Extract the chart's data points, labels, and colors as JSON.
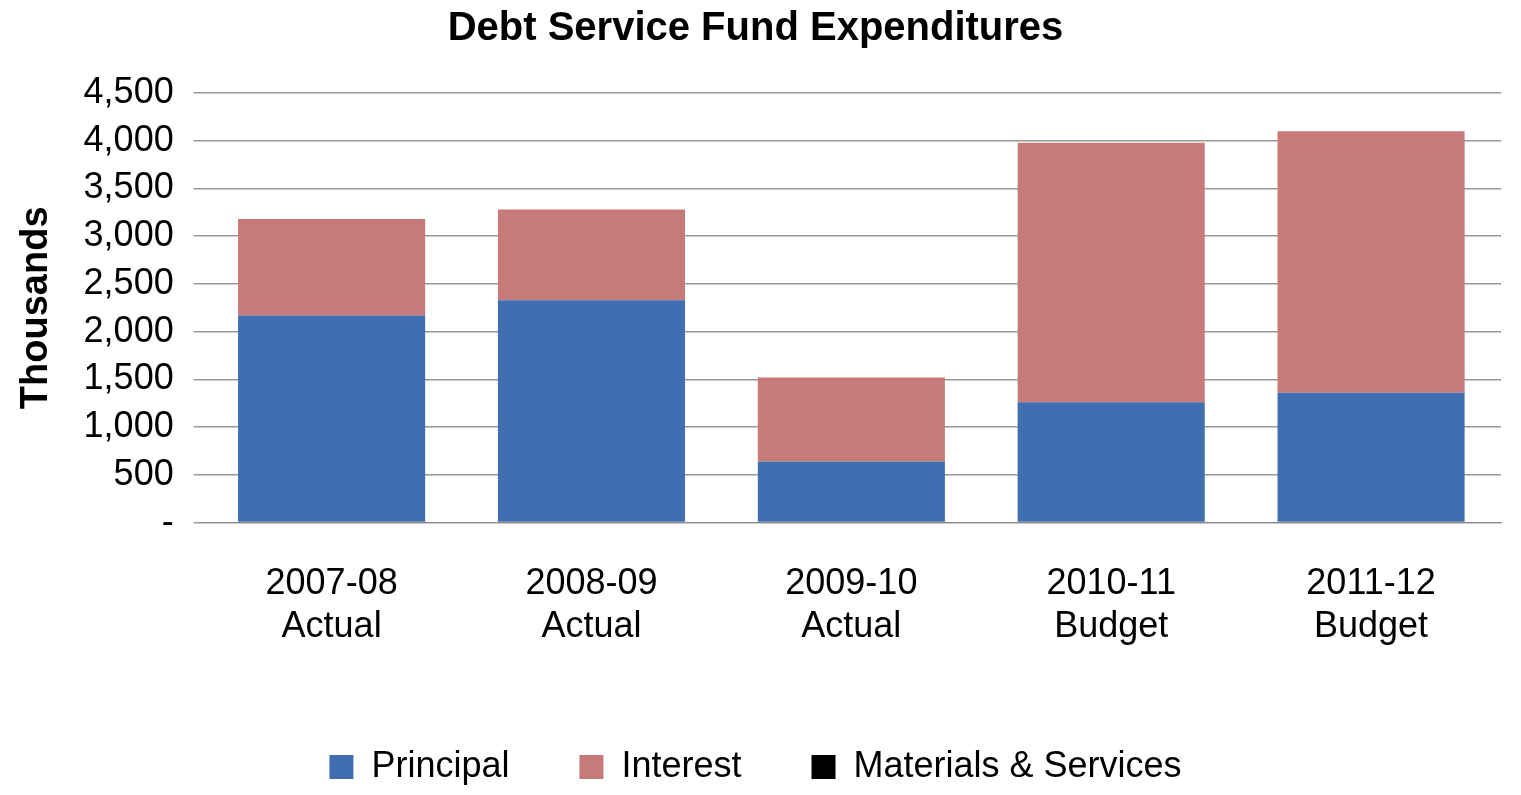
{
  "chart_data": {
    "type": "bar",
    "title": "Debt Service Fund Expenditures",
    "ylabel": "Thousands",
    "categories": [
      "2007-08 Actual",
      "2008-09 Actual",
      "2009-10 Actual",
      "2010-11 Budget",
      "2011-12 Budget"
    ],
    "stacked": true,
    "series": [
      {
        "name": "Principal",
        "color": "#3f6fb0",
        "values": [
          2170,
          2330,
          640,
          1260,
          1360
        ]
      },
      {
        "name": "Interest",
        "color": "#c77b78",
        "values": [
          1010,
          950,
          880,
          2720,
          2740
        ]
      },
      {
        "name": "Materials & Services",
        "color": "#000000",
        "values": [
          0,
          0,
          0,
          0,
          0
        ]
      }
    ],
    "ylim": [
      0,
      4500
    ],
    "yticks": [
      {
        "value": 0,
        "label": "-"
      },
      {
        "value": 500,
        "label": "500"
      },
      {
        "value": 1000,
        "label": "1,000"
      },
      {
        "value": 1500,
        "label": "1,500"
      },
      {
        "value": 2000,
        "label": "2,000"
      },
      {
        "value": 2500,
        "label": "2,500"
      },
      {
        "value": 3000,
        "label": "3,000"
      },
      {
        "value": 3500,
        "label": "3,500"
      },
      {
        "value": 4000,
        "label": "4,000"
      },
      {
        "value": 4500,
        "label": "4,500"
      }
    ],
    "grid": "y",
    "legend": "bottom"
  }
}
